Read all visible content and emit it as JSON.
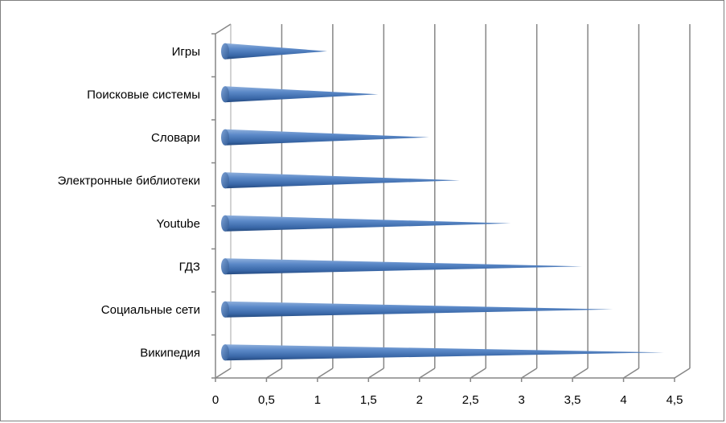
{
  "chart_data": {
    "type": "bar",
    "orientation": "horizontal",
    "style": "3d-cone",
    "bar_color": "#4f81bd",
    "categories": [
      "Игры",
      "Поисковые системы",
      "Словари",
      "Электронные библиотеки",
      "Youtube",
      "ГДЗ",
      "Социальные сети",
      "Википедия"
    ],
    "values": [
      1,
      1.5,
      2,
      2.3,
      2.8,
      3.5,
      3.8,
      4.3
    ],
    "xlim": [
      0,
      4.5
    ],
    "x_ticks": [
      "0",
      "0,5",
      "1",
      "1,5",
      "2",
      "2,5",
      "3",
      "3,5",
      "4",
      "4,5"
    ],
    "grid": true,
    "legend": "none",
    "title": "",
    "xlabel": "",
    "ylabel": ""
  }
}
